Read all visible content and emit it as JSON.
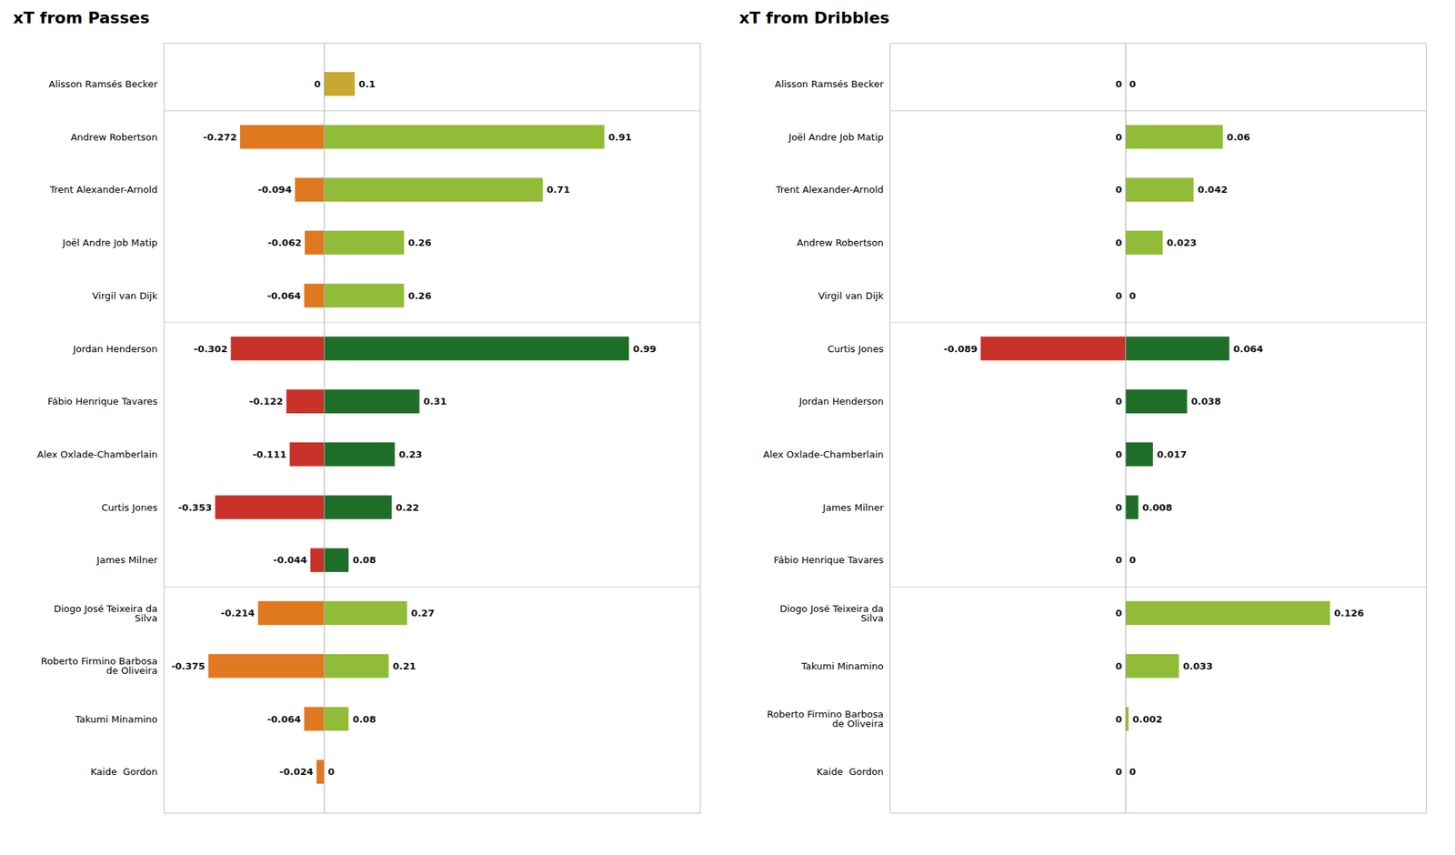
{
  "chart_data": [
    {
      "type": "bar",
      "orientation": "horizontal",
      "title": "xT from Passes",
      "categories": [
        "Alisson Ramsés Becker",
        "Andrew Robertson",
        "Trent Alexander-Arnold",
        "Joël Andre Job Matip",
        "Virgil van Dijk",
        "Jordan Henderson",
        "Fábio Henrique Tavares",
        "Alex Oxlade-Chamberlain",
        "Curtis Jones",
        "James Milner",
        "Diogo José Teixeira da\nSilva",
        "Roberto Firmino Barbosa\nde Oliveira",
        "Takumi Minamino",
        "Kaide  Gordon"
      ],
      "series": [
        {
          "values": [
            0,
            -0.272,
            -0.094,
            -0.062,
            -0.064,
            -0.302,
            -0.122,
            -0.111,
            -0.353,
            -0.044,
            -0.214,
            -0.375,
            -0.064,
            -0.024
          ],
          "colors": [
            "#c8a830",
            "#e07820",
            "#e07820",
            "#e07820",
            "#e07820",
            "#c83228",
            "#c83228",
            "#c83228",
            "#c83228",
            "#c83228",
            "#e07820",
            "#e07820",
            "#e07820",
            "#e07820"
          ]
        },
        {
          "values": [
            0.1,
            0.91,
            0.71,
            0.26,
            0.26,
            0.99,
            0.31,
            0.23,
            0.22,
            0.08,
            0.27,
            0.21,
            0.08,
            0
          ],
          "colors": [
            "#c8a830",
            "#90bc38",
            "#90bc38",
            "#90bc38",
            "#90bc38",
            "#1e6e28",
            "#1e6e28",
            "#1e6e28",
            "#1e6e28",
            "#1e6e28",
            "#90bc38",
            "#90bc38",
            "#90bc38",
            "#90bc38"
          ]
        }
      ],
      "xlim": [
        -0.52,
        1.22
      ],
      "data_labels": true,
      "tick_labels": "y"
    },
    {
      "type": "bar",
      "orientation": "horizontal",
      "title": "xT from Dribbles",
      "categories": [
        "Alisson Ramsés Becker",
        "Joël Andre Job Matip",
        "Trent Alexander-Arnold",
        "Andrew Robertson",
        "Virgil van Dijk",
        "Curtis Jones",
        "Jordan Henderson",
        "Alex Oxlade-Chamberlain",
        "James Milner",
        "Fábio Henrique Tavares",
        "Diogo José Teixeira da\nSilva",
        "Takumi Minamino",
        "Roberto Firmino Barbosa\nde Oliveira",
        "Kaide  Gordon"
      ],
      "series": [
        {
          "values": [
            0,
            0,
            0,
            0,
            0,
            -0.089,
            0,
            0,
            0,
            0,
            0,
            0,
            0,
            0
          ],
          "colors": [
            "#c8a830",
            "#e07820",
            "#e07820",
            "#e07820",
            "#e07820",
            "#c83228",
            "#c83228",
            "#c83228",
            "#c83228",
            "#c83228",
            "#e07820",
            "#e07820",
            "#e07820",
            "#e07820"
          ]
        },
        {
          "values": [
            0,
            0.06,
            0.042,
            0.023,
            0,
            0.064,
            0.038,
            0.017,
            0.008,
            0,
            0.126,
            0.033,
            0.002,
            0
          ],
          "colors": [
            "#c8a830",
            "#90bc38",
            "#90bc38",
            "#90bc38",
            "#90bc38",
            "#1e6e28",
            "#1e6e28",
            "#1e6e28",
            "#1e6e28",
            "#1e6e28",
            "#90bc38",
            "#90bc38",
            "#90bc38",
            "#90bc38"
          ]
        }
      ],
      "xlim": [
        -0.145,
        0.185
      ],
      "data_labels": true,
      "tick_labels": "y"
    }
  ]
}
